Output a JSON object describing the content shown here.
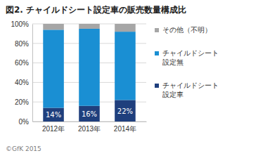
{
  "chart_data": {
    "type": "bar",
    "title": "図2. チャイルドシート設定車の販売数量構成比",
    "stacked": true,
    "grid": true,
    "legend": "right",
    "categories": [
      "2012年",
      "2013年",
      "2014年"
    ],
    "ylim": [
      0,
      100
    ],
    "yticks": [
      {
        "value": 0,
        "label": "0%"
      },
      {
        "value": 20,
        "label": "20%"
      },
      {
        "value": 40,
        "label": "40%"
      },
      {
        "value": 60,
        "label": "60%"
      },
      {
        "value": 80,
        "label": "80%"
      },
      {
        "value": 100,
        "label": "100%"
      }
    ],
    "series": [
      {
        "name": "チャイルドシート設定車",
        "color": "#1f3f7d",
        "values": [
          14,
          16,
          22
        ],
        "data_labels": true,
        "value_labels": [
          "14%",
          "16%",
          "22%"
        ]
      },
      {
        "name": "チャイルドシート設定無",
        "color": "#1a8fd3",
        "values": [
          80,
          79,
          70
        ]
      },
      {
        "name": "その他（不明）",
        "color": "#a6a6a6",
        "values": [
          6,
          5,
          8
        ]
      }
    ],
    "annotations": [
      "©GfK 2015"
    ]
  }
}
